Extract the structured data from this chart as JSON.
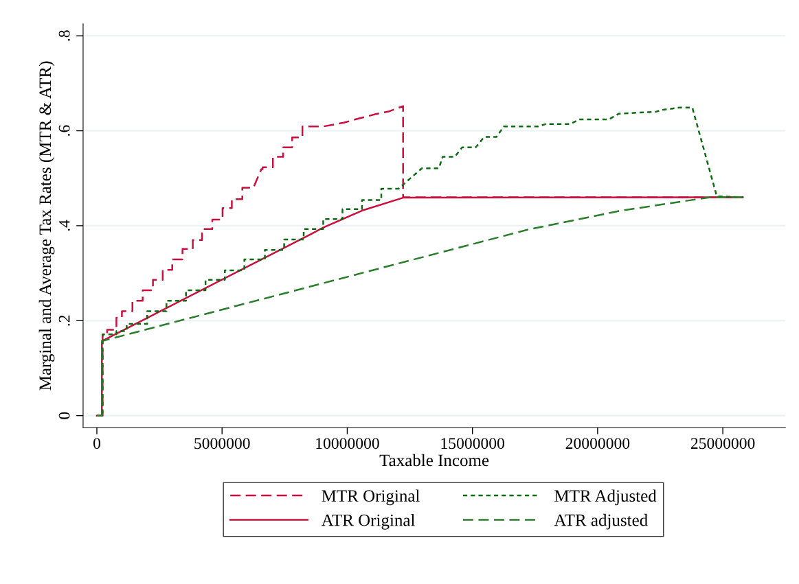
{
  "chart_data": {
    "type": "line",
    "xlabel": "Taxable Income",
    "ylabel": "Marginal and Average Tax Rates (MTR & ATR)",
    "xlim": [
      -550000,
      27500000
    ],
    "ylim": [
      -0.025,
      0.825
    ],
    "xticks": [
      0,
      5000000,
      10000000,
      15000000,
      20000000,
      25000000
    ],
    "yticks": [
      {
        "value": 0,
        "label": "0"
      },
      {
        "value": 0.2,
        "label": ".2"
      },
      {
        "value": 0.4,
        "label": ".4"
      },
      {
        "value": 0.6,
        "label": ".6"
      },
      {
        "value": 0.8,
        "label": ".8"
      }
    ],
    "grid": "y",
    "legend": "bottom",
    "marker": "none",
    "series": [
      {
        "name": "MTR Original",
        "color": "#c8103e",
        "line_style": "dashed",
        "x": [
          0,
          230000,
          230000,
          410000,
          410000,
          780000,
          780000,
          1000000,
          1000000,
          1420000,
          1420000,
          1830000,
          1830000,
          2240000,
          2240000,
          2630000,
          2630000,
          3010000,
          3010000,
          3420000,
          3420000,
          3830000,
          3830000,
          4200000,
          4200000,
          4610000,
          4610000,
          5020000,
          5020000,
          5390000,
          5390000,
          5810000,
          5810000,
          6250000,
          6570000,
          6620000,
          6620000,
          7030000,
          7030000,
          7440000,
          7440000,
          7800000,
          7800000,
          8210000,
          8210000,
          9040000,
          9860000,
          10400000,
          11140000,
          11680000,
          12230000,
          12230000,
          25800000
        ],
        "values": [
          0,
          0,
          0.171,
          0.171,
          0.181,
          0.181,
          0.206,
          0.206,
          0.22,
          0.22,
          0.242,
          0.242,
          0.264,
          0.264,
          0.286,
          0.286,
          0.307,
          0.307,
          0.329,
          0.329,
          0.351,
          0.351,
          0.37,
          0.37,
          0.393,
          0.393,
          0.413,
          0.413,
          0.437,
          0.437,
          0.456,
          0.456,
          0.48,
          0.48,
          0.519,
          0.519,
          0.523,
          0.523,
          0.545,
          0.545,
          0.565,
          0.565,
          0.586,
          0.586,
          0.609,
          0.609,
          0.617,
          0.625,
          0.635,
          0.641,
          0.652,
          0.46,
          0.46
        ]
      },
      {
        "name": "ATR Original",
        "color": "#c8103e",
        "line_style": "solid",
        "x": [
          0,
          200000,
          200000,
          8580000,
          9040000,
          10600000,
          12230000,
          25800000
        ],
        "values": [
          0,
          0,
          0.157,
          0.383,
          0.396,
          0.432,
          0.459,
          0.46
        ]
      },
      {
        "name": "MTR Adjusted",
        "color": "#0e6a12",
        "line_style": "dotted",
        "x": [
          0,
          230000,
          230000,
          780000,
          780000,
          1190000,
          1190000,
          2010000,
          2010000,
          2780000,
          2780000,
          3560000,
          3560000,
          4340000,
          4340000,
          5110000,
          5110000,
          5890000,
          5890000,
          6710000,
          6710000,
          7480000,
          7480000,
          8260000,
          8260000,
          9040000,
          9040000,
          9810000,
          9810000,
          10590000,
          10590000,
          11360000,
          11360000,
          12050000,
          12980000,
          13660000,
          13810000,
          14290000,
          14590000,
          15130000,
          15470000,
          15960000,
          16250000,
          17620000,
          17920000,
          18890000,
          19290000,
          20450000,
          20850000,
          22320000,
          22610000,
          23290000,
          23780000,
          24760000,
          25800000
        ],
        "values": [
          0,
          0,
          0.171,
          0.171,
          0.178,
          0.178,
          0.193,
          0.193,
          0.22,
          0.22,
          0.242,
          0.242,
          0.264,
          0.264,
          0.286,
          0.286,
          0.306,
          0.306,
          0.329,
          0.329,
          0.349,
          0.349,
          0.371,
          0.371,
          0.393,
          0.393,
          0.414,
          0.414,
          0.435,
          0.435,
          0.454,
          0.454,
          0.478,
          0.478,
          0.521,
          0.521,
          0.545,
          0.545,
          0.565,
          0.565,
          0.587,
          0.587,
          0.609,
          0.609,
          0.614,
          0.614,
          0.624,
          0.624,
          0.636,
          0.64,
          0.644,
          0.649,
          0.649,
          0.462,
          0.46
        ]
      },
      {
        "name": "ATR adjusted",
        "color": "#2a7d2a",
        "line_style": "dashed",
        "x": [
          0,
          200000,
          200000,
          13100000,
          17230000,
          20850000,
          24500000,
          25800000
        ],
        "values": [
          0,
          0,
          0.157,
          0.335,
          0.392,
          0.431,
          0.46,
          0.46
        ]
      }
    ]
  }
}
